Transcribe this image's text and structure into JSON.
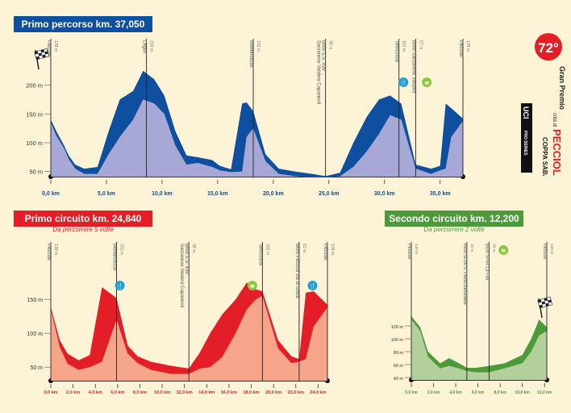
{
  "colors": {
    "blue": "#0f4fa0",
    "blue_fill": "#a7a8d6",
    "red": "#e41e26",
    "red_fill": "#f6a48a",
    "green": "#4c9a3a",
    "green_fill": "#b3cf9c",
    "bg": "#fdf3d6",
    "badge_blue": "#1ba3d6",
    "badge_green": "#8cc63f"
  },
  "panels": {
    "primo": {
      "title": "Primo percorso km. 37,050",
      "y_ticks": [
        {
          "v": 50,
          "label": "50 m"
        },
        {
          "v": 100,
          "label": "100 m"
        },
        {
          "v": 150,
          "label": "150 m"
        },
        {
          "v": 200,
          "label": "200 m"
        }
      ],
      "x_ticks": [
        {
          "v": 0,
          "label": "0,0 km"
        },
        {
          "v": 5,
          "label": "5,0 km"
        },
        {
          "v": 10,
          "label": "10,0 km"
        },
        {
          "v": 15,
          "label": "15,0 km"
        },
        {
          "v": 20,
          "label": "20,0 km"
        },
        {
          "v": 25,
          "label": "25,0 km"
        },
        {
          "v": 30,
          "label": "30,0 km"
        },
        {
          "v": 35,
          "label": "35,0 km"
        }
      ],
      "places": [
        {
          "km": 0,
          "label": "Peccioli",
          "alt": "139 m."
        },
        {
          "km": 8.6,
          "label": "Legoli",
          "alt": "234 m."
        },
        {
          "km": 18.2,
          "label": "Montefoscoli",
          "alt": "152 m."
        },
        {
          "km": 24.7,
          "label": "Bivio S.S. 439",
          "sub": "Sarzanese Valdera Capannoli",
          "alt": "38 m."
        },
        {
          "km": 31.3,
          "label": "Terricciola",
          "alt": "162 m."
        },
        {
          "km": 32.8,
          "label": "Bivio Sarzanese Valdera",
          "alt": "57 m."
        },
        {
          "km": 37.05,
          "label": "Peccioli",
          "alt": "139 m."
        }
      ],
      "icons": [
        {
          "km": 31.7,
          "type": "feed",
          "glyph": "🍴"
        },
        {
          "km": 33.8,
          "type": "sprint",
          "glyph": "≋"
        }
      ]
    },
    "primo_circuito": {
      "title": "Primo circuito km. 24,840",
      "subtitle": "Da percorrere 5 volte",
      "y_ticks": [
        {
          "v": 50,
          "label": "50 m"
        },
        {
          "v": 100,
          "label": "100 m"
        },
        {
          "v": 150,
          "label": "150 m"
        }
      ],
      "x_ticks": [
        {
          "v": 0,
          "label": "0,0 km"
        },
        {
          "v": 2,
          "label": "2,0 km"
        },
        {
          "v": 4,
          "label": "4,0 km"
        },
        {
          "v": 6,
          "label": "6,0 km"
        },
        {
          "v": 8,
          "label": "8,0 km"
        },
        {
          "v": 10,
          "label": "10,0 km"
        },
        {
          "v": 12,
          "label": "12,0 km"
        },
        {
          "v": 14,
          "label": "14,0 km"
        },
        {
          "v": 16,
          "label": "16,0 km"
        },
        {
          "v": 18,
          "label": "18,0 km"
        },
        {
          "v": 20,
          "label": "20,0 km"
        },
        {
          "v": 22,
          "label": "22,0 km"
        },
        {
          "v": 24,
          "label": "24,0 km"
        }
      ],
      "places": [
        {
          "km": 0,
          "label": "Peccioli",
          "alt": "139 m."
        },
        {
          "km": 5.9,
          "label": "Montefoscoli",
          "alt": "152 m."
        },
        {
          "km": 12.4,
          "label": "Bivio S.S. 439",
          "sub": "Sarzanese Valdera Capannoli",
          "alt": "38 m."
        },
        {
          "km": 19,
          "label": "Terricciola",
          "alt": "162 m."
        },
        {
          "km": 22.3,
          "label": "Bivio Peccioli via di Greta",
          "alt": "52 m."
        },
        {
          "km": 24.84,
          "label": "Peccioli",
          "alt": "139 m."
        }
      ],
      "icons": [
        {
          "km": 6.2,
          "type": "feed",
          "glyph": "🍴"
        },
        {
          "km": 18.1,
          "type": "sprint",
          "glyph": "≋"
        },
        {
          "km": 23.5,
          "type": "feed",
          "glyph": "🍴"
        }
      ]
    },
    "secondo_circuito": {
      "title": "Secondo circuito km. 12,200",
      "subtitle": "Da percorrere 2 volte",
      "y_ticks": [
        {
          "v": 40,
          "label": "40 m"
        },
        {
          "v": 60,
          "label": "60 m"
        },
        {
          "v": 80,
          "label": "80 m"
        },
        {
          "v": 100,
          "label": "100 m"
        },
        {
          "v": 120,
          "label": "120 m"
        }
      ],
      "x_ticks": [
        {
          "v": 0,
          "label": "0,0 km"
        },
        {
          "v": 2,
          "label": "2,0 km"
        },
        {
          "v": 4,
          "label": "4,0 km"
        },
        {
          "v": 6,
          "label": "6,0 km"
        },
        {
          "v": 8,
          "label": "8,0 km"
        },
        {
          "v": 10,
          "label": "10,0 km"
        },
        {
          "v": 12,
          "label": "12,0 km"
        }
      ],
      "places": [
        {
          "km": 0,
          "label": "Peccioli",
          "alt": "139 m."
        },
        {
          "km": 5.0,
          "label": "Bivio SP26 S. Pietro Belvedere",
          "alt": "40 m."
        },
        {
          "km": 7.0,
          "label": "Bivio SP64 La Fila",
          "alt": "39 m."
        },
        {
          "km": 12.2,
          "label": "Peccioli",
          "alt": "139 m."
        }
      ],
      "icons": [
        {
          "km": 8.3,
          "type": "sprint",
          "glyph": "≋"
        }
      ]
    }
  },
  "logo": {
    "edition": "72°",
    "line1": "Gran Premio",
    "line2": "città di",
    "line3": "PECCIOLI",
    "line4": "COPPA SABATINI",
    "uci": "UCI",
    "series": "PRO SERIES"
  }
}
